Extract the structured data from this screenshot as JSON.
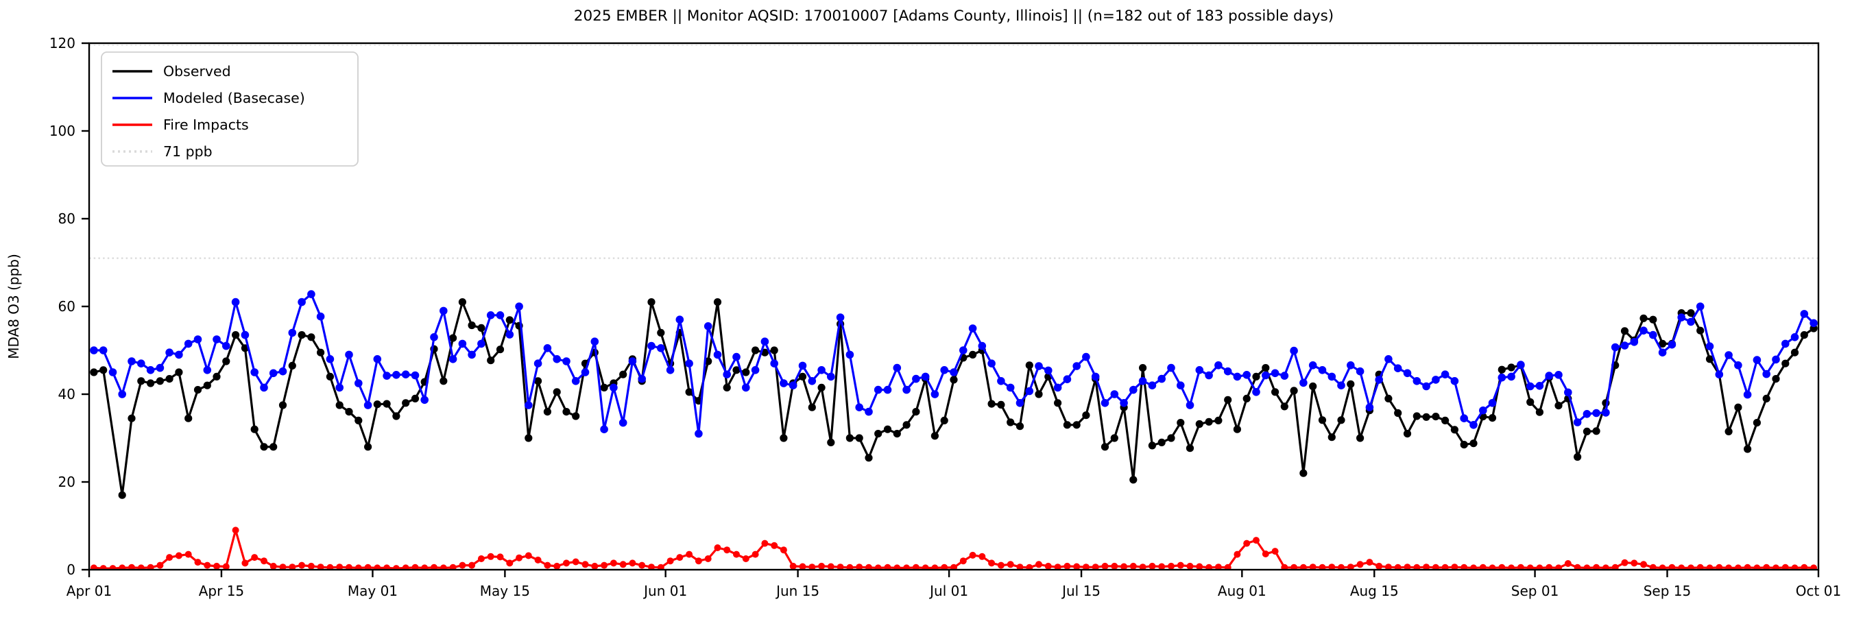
{
  "chart_data": {
    "type": "line",
    "title": "2025 EMBER || Monitor AQSID: 170010007 [Adams County, Illinois] || (n=182 out of 183 possible days)",
    "ylabel": "MDA8 O3 (ppb)",
    "xlabel": "",
    "ylim": [
      0,
      120
    ],
    "yticks": [
      0,
      20,
      40,
      60,
      80,
      100,
      120
    ],
    "xlim_days": [
      0,
      183
    ],
    "xticks": [
      {
        "day": 0,
        "label": "Apr 01"
      },
      {
        "day": 14,
        "label": "Apr 15"
      },
      {
        "day": 30,
        "label": "May 01"
      },
      {
        "day": 44,
        "label": "May 15"
      },
      {
        "day": 61,
        "label": "Jun 01"
      },
      {
        "day": 75,
        "label": "Jun 15"
      },
      {
        "day": 91,
        "label": "Jul 01"
      },
      {
        "day": 105,
        "label": "Jul 15"
      },
      {
        "day": 122,
        "label": "Aug 01"
      },
      {
        "day": 136,
        "label": "Aug 15"
      },
      {
        "day": 153,
        "label": "Sep 01"
      },
      {
        "day": 167,
        "label": "Sep 15"
      },
      {
        "day": 183,
        "label": "Oct 01"
      }
    ],
    "grid": false,
    "legend_position": "upper-left",
    "reference_line": {
      "value": 71,
      "label": "71 ppb",
      "color": "#dadada",
      "style": "dotted"
    },
    "colors": {
      "observed": "#000000",
      "modeled": "#0000ff",
      "fire": "#ff0000",
      "frame": "#000000"
    },
    "series": [
      {
        "name": "Observed",
        "color": "#000000",
        "marker": "circle",
        "values": [
          45,
          45.5,
          null,
          17,
          34.5,
          43,
          42.5,
          43,
          43.5,
          45,
          34.5,
          41,
          42,
          44,
          47.5,
          53.5,
          50.5,
          32,
          28,
          28,
          37.5,
          46.5,
          53.5,
          53,
          49.5,
          44,
          37.5,
          36,
          34,
          28,
          37.7,
          37.8,
          35,
          38,
          39,
          42.8,
          50.3,
          43,
          52.8,
          61,
          55.7,
          55.1,
          47.7,
          50.2,
          56.9,
          55.6,
          30,
          43,
          36,
          40.5,
          36,
          35,
          47,
          49.5,
          41.5,
          42.5,
          44.5,
          48,
          43,
          61,
          54,
          47,
          54,
          40.5,
          38.5,
          47.5,
          61,
          41.5,
          45.5,
          45,
          50,
          49.5,
          50,
          30,
          42.5,
          44,
          37,
          41.5,
          29,
          56,
          30,
          30,
          25.5,
          31,
          32,
          31,
          33,
          36,
          43.5,
          30.5,
          34,
          43.3,
          48.3,
          49,
          50,
          37.8,
          37.6,
          33.6,
          32.7,
          46.6,
          40,
          44,
          38,
          33,
          33,
          35.2,
          43.5,
          28,
          30,
          37,
          20.5,
          46,
          28.3,
          29,
          30,
          33.5,
          27.7,
          33.2,
          33.7,
          34,
          38.7,
          32,
          39,
          44,
          46,
          40.5,
          37.2,
          40.8,
          22,
          41.8,
          34.1,
          30.2,
          34.1,
          42.3,
          30,
          36.3,
          44.5,
          39,
          35.7,
          31,
          35,
          34.8,
          34.9,
          34,
          31.9,
          28.5,
          28.8,
          34.9,
          34.6,
          45.6,
          46.1,
          46.6,
          38.2,
          35.9,
          43.8,
          37.4,
          39,
          25.7,
          31.5,
          31.6,
          38,
          46.6,
          54.4,
          52.3,
          57.3,
          57,
          51.5,
          51.5,
          58.5,
          58.5,
          54.5,
          48,
          44.5,
          31.5,
          37,
          27.5,
          33.5,
          39,
          43.5,
          47,
          49.5,
          53.5,
          55
        ]
      },
      {
        "name": "Modeled (Basecase)",
        "color": "#0000ff",
        "marker": "circle",
        "values": [
          50,
          50,
          45,
          40,
          47.5,
          47,
          45.5,
          46,
          49.5,
          49,
          51.5,
          52.5,
          45.5,
          52.5,
          51,
          61,
          53.5,
          45,
          41.5,
          44.8,
          45.2,
          54,
          61,
          62.8,
          57.7,
          48,
          41.5,
          49,
          42.5,
          37.5,
          48,
          44.2,
          44.4,
          44.5,
          44.3,
          38.7,
          53,
          59,
          48,
          51.5,
          49,
          51.5,
          58,
          58,
          53.6,
          60,
          37.5,
          47,
          50.5,
          48,
          47.5,
          43,
          45,
          52,
          32,
          41.5,
          33.5,
          47.5,
          43.5,
          51,
          50.5,
          45.5,
          57,
          47,
          31,
          55.5,
          49,
          44.5,
          48.5,
          41.5,
          45.5,
          52,
          47,
          42.5,
          42,
          46.5,
          43,
          45.5,
          44,
          57.5,
          49,
          37,
          36,
          41,
          41,
          46,
          41,
          43.5,
          44,
          40,
          45.5,
          45,
          50,
          55,
          51,
          47,
          43,
          41.5,
          38,
          40.7,
          46.4,
          45.4,
          41.5,
          43.4,
          46.4,
          48.5,
          44,
          38,
          40,
          38,
          41,
          43,
          42,
          43.5,
          46,
          42,
          37.5,
          45.5,
          44.3,
          46.6,
          45.2,
          44,
          44.4,
          40.5,
          44.3,
          44.8,
          44.2,
          49.9,
          42.6,
          46.6,
          45.5,
          44,
          42,
          46.6,
          45.2,
          37,
          43.3,
          48,
          45.9,
          44.8,
          43,
          41.8,
          43.3,
          44.5,
          43,
          34.5,
          33,
          36.3,
          38,
          43.8,
          44,
          46.7,
          41.8,
          41.9,
          44.2,
          44.4,
          40.4,
          33.6,
          35.5,
          35.7,
          35.8,
          50.7,
          51.1,
          51.9,
          54.5,
          53.5,
          49.5,
          51.3,
          57.5,
          56.5,
          60,
          50.9,
          44.5,
          48.9,
          46.6,
          39.9,
          47.8,
          44.6,
          47.9,
          51.5,
          53,
          58.3,
          56.2
        ]
      },
      {
        "name": "Fire Impacts",
        "color": "#ff0000",
        "marker": "circle",
        "values": [
          0.4,
          0.3,
          0.3,
          0.4,
          0.5,
          0.4,
          0.5,
          1.0,
          2.8,
          3.2,
          3.5,
          1.7,
          1.0,
          0.8,
          0.7,
          9.0,
          1.5,
          2.8,
          2.0,
          0.8,
          0.6,
          0.6,
          1.0,
          0.8,
          0.6,
          0.5,
          0.6,
          0.5,
          0.4,
          0.5,
          0.4,
          0.4,
          0.3,
          0.4,
          0.5,
          0.4,
          0.5,
          0.4,
          0.5,
          1.0,
          1.0,
          2.5,
          3.0,
          2.9,
          1.5,
          2.7,
          3.2,
          2.2,
          1.0,
          0.8,
          1.5,
          1.8,
          1.2,
          0.8,
          1.0,
          1.5,
          1.2,
          1.5,
          1.0,
          0.6,
          0.5,
          2.0,
          2.8,
          3.5,
          2.0,
          2.5,
          5.0,
          4.5,
          3.5,
          2.5,
          3.5,
          6.0,
          5.5,
          4.5,
          0.8,
          0.7,
          0.6,
          0.8,
          0.7,
          0.6,
          0.5,
          0.6,
          0.5,
          0.4,
          0.5,
          0.4,
          0.4,
          0.5,
          0.4,
          0.4,
          0.5,
          0.5,
          2.0,
          3.3,
          3.0,
          1.5,
          1.0,
          1.2,
          0.6,
          0.5,
          1.2,
          0.8,
          0.6,
          0.8,
          0.7,
          0.6,
          0.6,
          0.8,
          0.8,
          0.7,
          0.8,
          0.6,
          0.8,
          0.7,
          0.8,
          1.0,
          0.8,
          0.7,
          0.5,
          0.6,
          0.5,
          3.5,
          6.0,
          6.7,
          3.6,
          4.2,
          0.5,
          0.5,
          0.5,
          0.6,
          0.5,
          0.6,
          0.5,
          0.6,
          1.2,
          1.7,
          0.8,
          0.6,
          0.5,
          0.6,
          0.5,
          0.6,
          0.5,
          0.5,
          0.6,
          0.5,
          0.4,
          0.5,
          0.4,
          0.5,
          0.4,
          0.5,
          0.4,
          0.4,
          0.5,
          0.4,
          1.4,
          0.5,
          0.4,
          0.5,
          0.4,
          0.5,
          1.6,
          1.5,
          1.2,
          0.5,
          0.4,
          0.5,
          0.4,
          0.4,
          0.5,
          0.4,
          0.5,
          0.4,
          0.4,
          0.5,
          0.4,
          0.5,
          0.4,
          0.5,
          0.4,
          0.5,
          0.4
        ]
      }
    ]
  },
  "layout_note": "daily MDA8 ozone time series, Apr 01 through Sep 30"
}
